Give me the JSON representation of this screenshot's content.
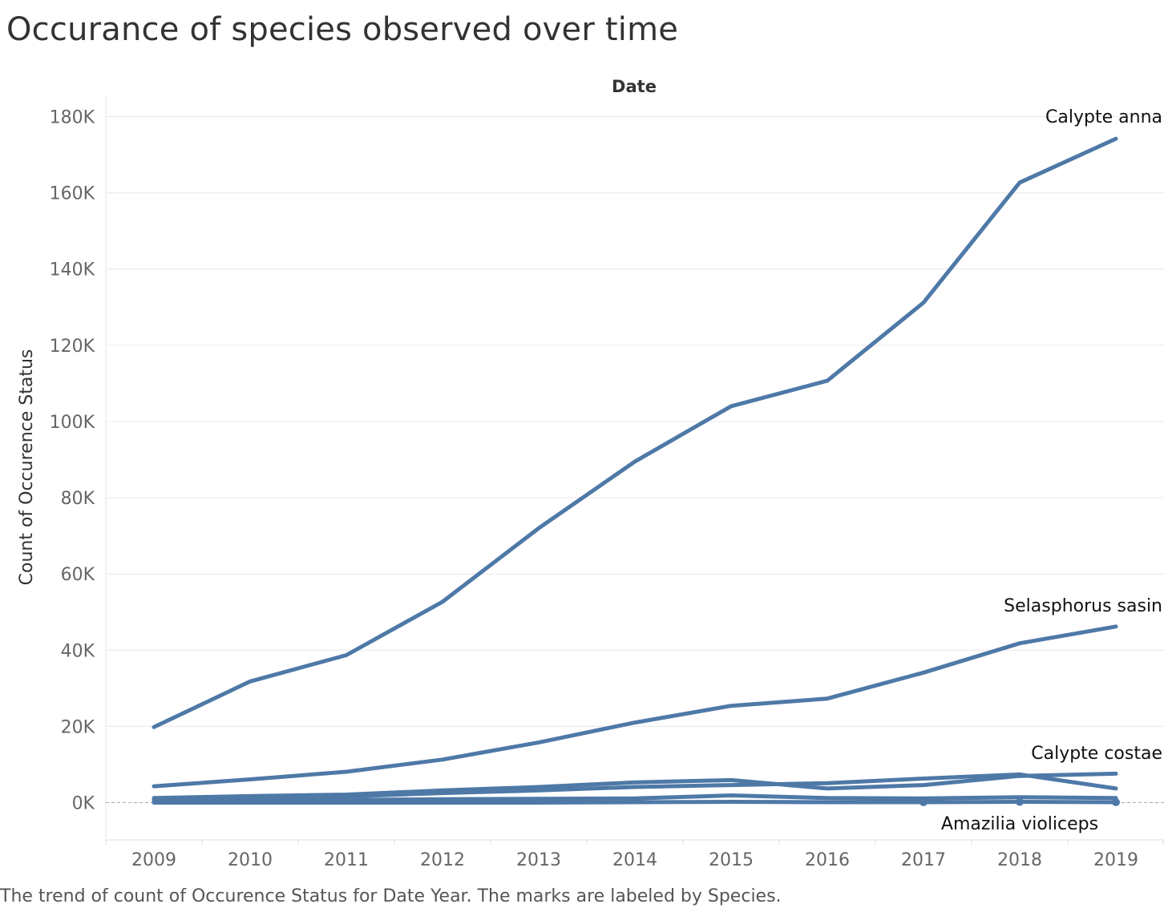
{
  "title": "Occurance of species observed over time",
  "caption": "The trend of count of Occurence Status for Date Year.  The marks are labeled by Species.",
  "chart_data": {
    "type": "line",
    "header": "Date",
    "ylabel": "Count of Occurence Status",
    "xlabel": "",
    "x": [
      2009,
      2010,
      2011,
      2012,
      2013,
      2014,
      2015,
      2016,
      2017,
      2018,
      2019
    ],
    "x_tick_labels": [
      "2009",
      "2010",
      "2011",
      "2012",
      "2013",
      "2014",
      "2015",
      "2016",
      "2017",
      "2018",
      "2019"
    ],
    "ylim": [
      -9000,
      180000
    ],
    "y_ticks": [
      0,
      20000,
      40000,
      60000,
      80000,
      100000,
      120000,
      140000,
      160000,
      180000
    ],
    "y_tick_labels": [
      "0K",
      "20K",
      "40K",
      "60K",
      "80K",
      "100K",
      "120K",
      "140K",
      "160K",
      "180K"
    ],
    "grid": true,
    "zero_line": "dashed",
    "line_color": "#4e79a7",
    "series": [
      {
        "name": "Calypte anna",
        "label_visible": true,
        "values": [
          19800,
          31800,
          38700,
          52700,
          72000,
          89500,
          104000,
          110700,
          131200,
          162700,
          174200
        ]
      },
      {
        "name": "Selasphorus sasin",
        "label_visible": true,
        "values": [
          4300,
          6100,
          8100,
          11300,
          15800,
          21000,
          25400,
          27300,
          34100,
          41800,
          46200
        ]
      },
      {
        "name": "Calypte costae",
        "label_visible": true,
        "values": [
          1200,
          1700,
          2100,
          3200,
          4100,
          5300,
          5900,
          3700,
          4600,
          7000,
          7600
        ]
      },
      {
        "name": "",
        "label_visible": false,
        "values": [
          800,
          1200,
          1600,
          2500,
          3200,
          4100,
          4600,
          5100,
          6300,
          7400,
          3700
        ]
      },
      {
        "name": "",
        "label_visible": false,
        "values": [
          400,
          600,
          700,
          900,
          1000,
          1100,
          1900,
          1200,
          1100,
          1400,
          1200
        ]
      },
      {
        "name": "Amazilia violiceps",
        "label_visible": true,
        "values": [
          0,
          0,
          0,
          0,
          0,
          100,
          200,
          100,
          100,
          200,
          100
        ]
      }
    ]
  }
}
